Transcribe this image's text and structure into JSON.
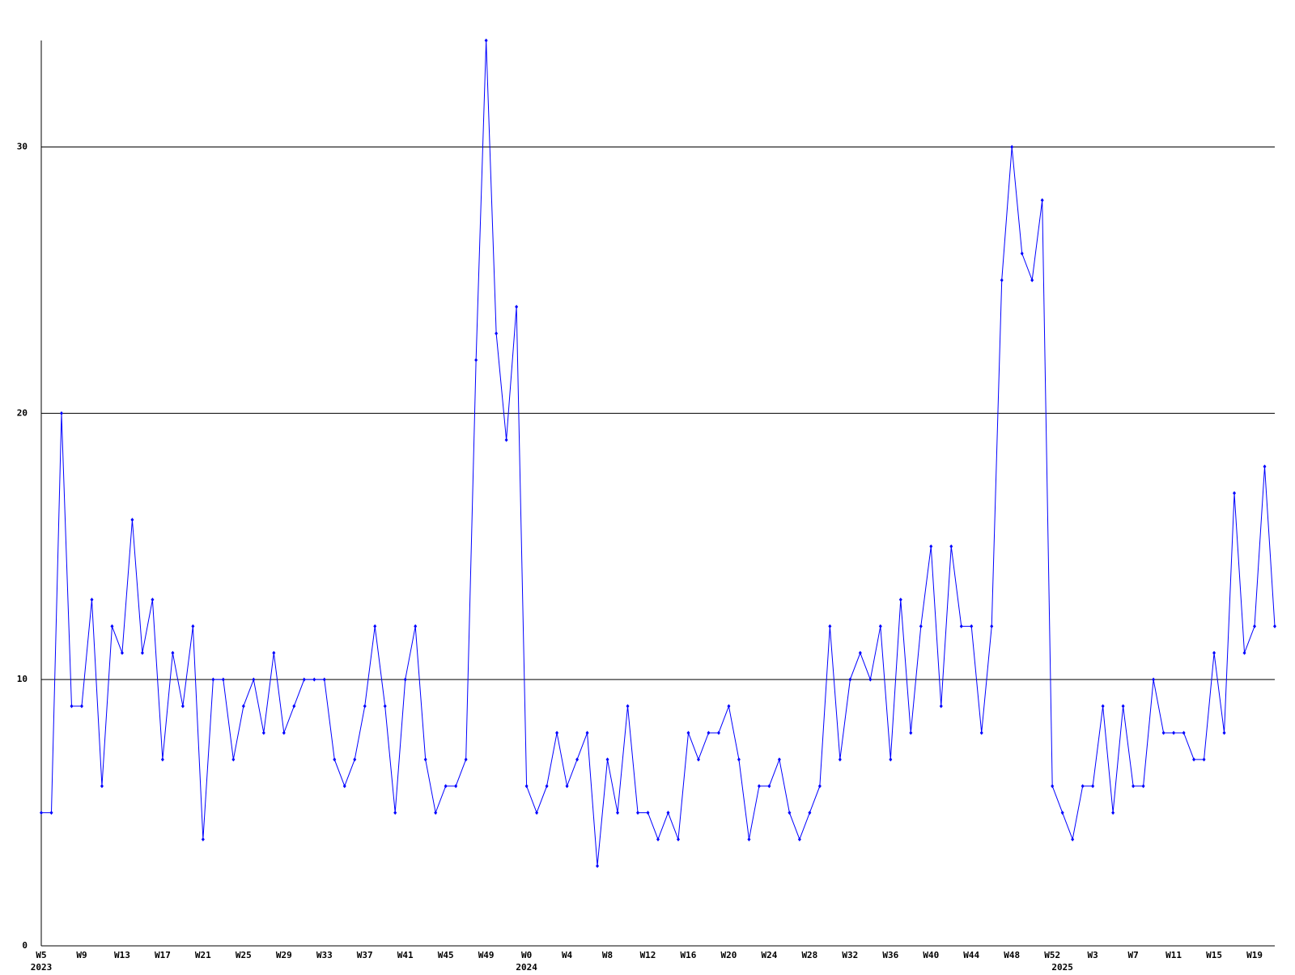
{
  "chart_data": {
    "type": "line",
    "color": "#0000ff",
    "grid": true,
    "ylim": [
      0,
      34
    ],
    "yticks": [
      0,
      10,
      20,
      30
    ],
    "categories": [
      "W5",
      null,
      null,
      null,
      "W9",
      null,
      null,
      null,
      "W13",
      null,
      null,
      null,
      "W17",
      null,
      null,
      null,
      "W21",
      null,
      null,
      null,
      "W25",
      null,
      null,
      null,
      "W29",
      null,
      null,
      null,
      "W33",
      null,
      null,
      null,
      "W37",
      null,
      null,
      null,
      "W41",
      null,
      null,
      null,
      "W45",
      null,
      null,
      null,
      "W49",
      null,
      null,
      null,
      "W0",
      null,
      null,
      null,
      "W4",
      null,
      null,
      null,
      "W8",
      null,
      null,
      null,
      "W12",
      null,
      null,
      null,
      "W16",
      null,
      null,
      null,
      "W20",
      null,
      null,
      null,
      "W24",
      null,
      null,
      null,
      "W28",
      null,
      null,
      null,
      "W32",
      null,
      null,
      null,
      "W36",
      null,
      null,
      null,
      "W40",
      null,
      null,
      null,
      "W44",
      null,
      null,
      null,
      "W48",
      null,
      null,
      null,
      "W52",
      null,
      null,
      null,
      "W3",
      null,
      null,
      null,
      "W7",
      null,
      null,
      null,
      "W11",
      null,
      null,
      null,
      "W15",
      null,
      null,
      null,
      "W19",
      null,
      null
    ],
    "category_years": [
      "2023",
      null,
      null,
      null,
      null,
      null,
      null,
      null,
      null,
      null,
      null,
      null,
      null,
      null,
      null,
      null,
      null,
      null,
      null,
      null,
      null,
      null,
      null,
      null,
      null,
      null,
      null,
      null,
      null,
      null,
      null,
      null,
      null,
      null,
      null,
      null,
      null,
      null,
      null,
      null,
      null,
      null,
      null,
      null,
      null,
      null,
      null,
      null,
      "2024",
      null,
      null,
      null,
      null,
      null,
      null,
      null,
      null,
      null,
      null,
      null,
      null,
      null,
      null,
      null,
      null,
      null,
      null,
      null,
      null,
      null,
      null,
      null,
      null,
      null,
      null,
      null,
      null,
      null,
      null,
      null,
      null,
      null,
      null,
      null,
      null,
      null,
      null,
      null,
      null,
      null,
      null,
      null,
      null,
      null,
      null,
      null,
      null,
      null,
      null,
      null,
      null,
      "2025",
      null,
      null,
      null,
      null,
      null,
      null,
      null,
      null,
      null,
      null,
      null,
      null,
      null,
      null,
      null,
      null,
      null,
      null,
      null,
      null,
      null
    ],
    "values": [
      5,
      5,
      20,
      9,
      9,
      13,
      6,
      12,
      11,
      16,
      11,
      13,
      7,
      11,
      9,
      12,
      4,
      10,
      10,
      7,
      9,
      10,
      8,
      11,
      8,
      9,
      10,
      10,
      10,
      7,
      6,
      7,
      9,
      12,
      9,
      5,
      10,
      12,
      7,
      5,
      6,
      6,
      7,
      22,
      34,
      23,
      19,
      24,
      6,
      5,
      6,
      8,
      6,
      7,
      8,
      3,
      7,
      5,
      9,
      5,
      5,
      4,
      5,
      4,
      8,
      7,
      8,
      8,
      9,
      7,
      4,
      6,
      6,
      7,
      5,
      4,
      5,
      6,
      12,
      7,
      10,
      11,
      10,
      12,
      7,
      13,
      8,
      12,
      15,
      9,
      15,
      12,
      12,
      8,
      12,
      25,
      30,
      26,
      25,
      28,
      6,
      5,
      4,
      6,
      6,
      9,
      5,
      9,
      6,
      6,
      10,
      8,
      8,
      8,
      7,
      7,
      11,
      8,
      17,
      11,
      12,
      18,
      12
    ]
  }
}
